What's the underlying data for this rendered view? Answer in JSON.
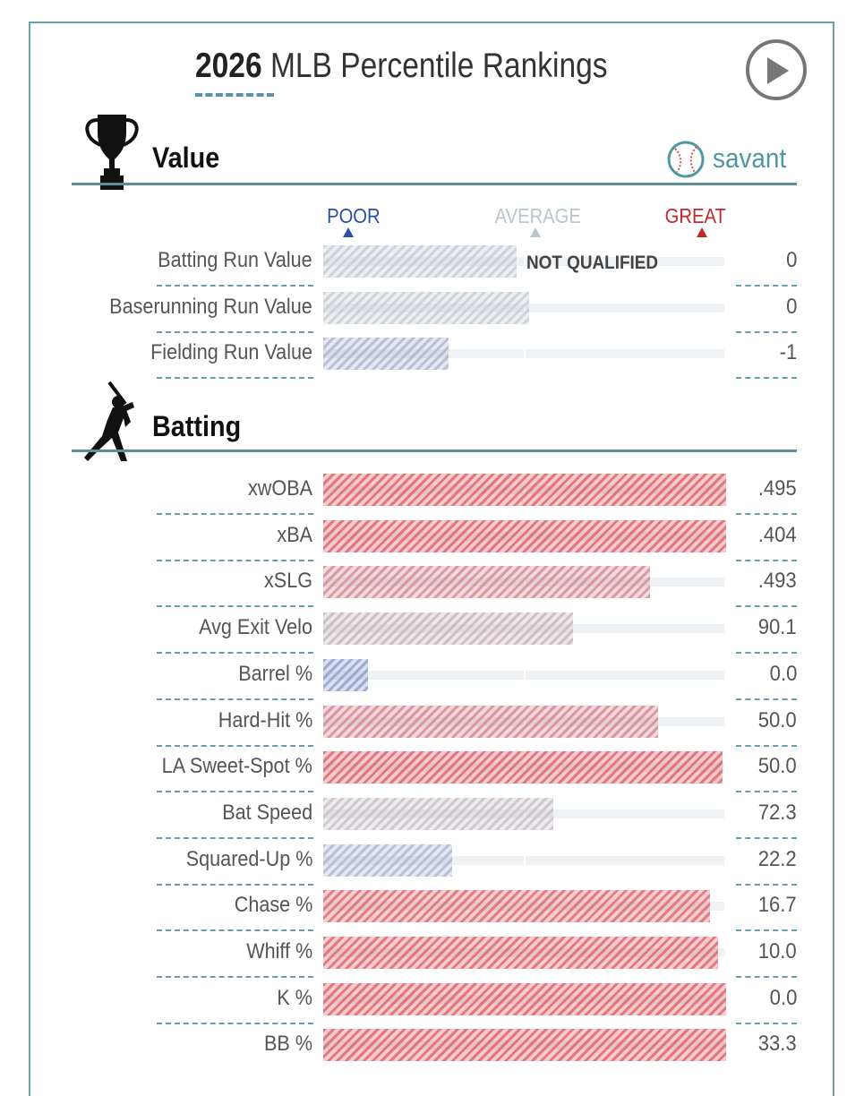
{
  "title": {
    "year": "2026",
    "rest": "MLB Percentile Rankings"
  },
  "brand": {
    "name": "savant"
  },
  "scale": {
    "poor": "POOR",
    "average": "AVERAGE",
    "great": "GREAT"
  },
  "sections": {
    "value": {
      "heading": "Value",
      "note": "NOT QUALIFIED"
    },
    "batting": {
      "heading": "Batting"
    }
  },
  "colors": {
    "poor": "#7e8fca",
    "average": "#c4ced6",
    "great": "#de5f66",
    "accent": "#5a93a3"
  },
  "chart_data": {
    "type": "bar",
    "orientation": "horizontal",
    "value_meaning": "percentile (0-100), estimated from bar length",
    "x_range": [
      0,
      100
    ],
    "groups": [
      {
        "name": "Value",
        "rows": [
          {
            "label": "Batting Run Value",
            "stat": "0",
            "percentile": 48
          },
          {
            "label": "Baserunning Run Value",
            "stat": "0",
            "percentile": 51
          },
          {
            "label": "Fielding Run Value",
            "stat": "-1",
            "percentile": 31
          }
        ]
      },
      {
        "name": "Batting",
        "rows": [
          {
            "label": "xwOBA",
            "stat": ".495",
            "percentile": 100
          },
          {
            "label": "xBA",
            "stat": ".404",
            "percentile": 100
          },
          {
            "label": "xSLG",
            "stat": ".493",
            "percentile": 81
          },
          {
            "label": "Avg Exit Velo",
            "stat": "90.1",
            "percentile": 62
          },
          {
            "label": "Barrel %",
            "stat": "0.0",
            "percentile": 11
          },
          {
            "label": "Hard-Hit %",
            "stat": "50.0",
            "percentile": 83
          },
          {
            "label": "LA Sweet-Spot %",
            "stat": "50.0",
            "percentile": 99
          },
          {
            "label": "Bat Speed",
            "stat": "72.3",
            "percentile": 57
          },
          {
            "label": "Squared-Up %",
            "stat": "22.2",
            "percentile": 32
          },
          {
            "label": "Chase %",
            "stat": "16.7",
            "percentile": 96
          },
          {
            "label": "Whiff %",
            "stat": "10.0",
            "percentile": 98
          },
          {
            "label": "K %",
            "stat": "0.0",
            "percentile": 100
          },
          {
            "label": "BB %",
            "stat": "33.3",
            "percentile": 100
          }
        ]
      }
    ]
  }
}
